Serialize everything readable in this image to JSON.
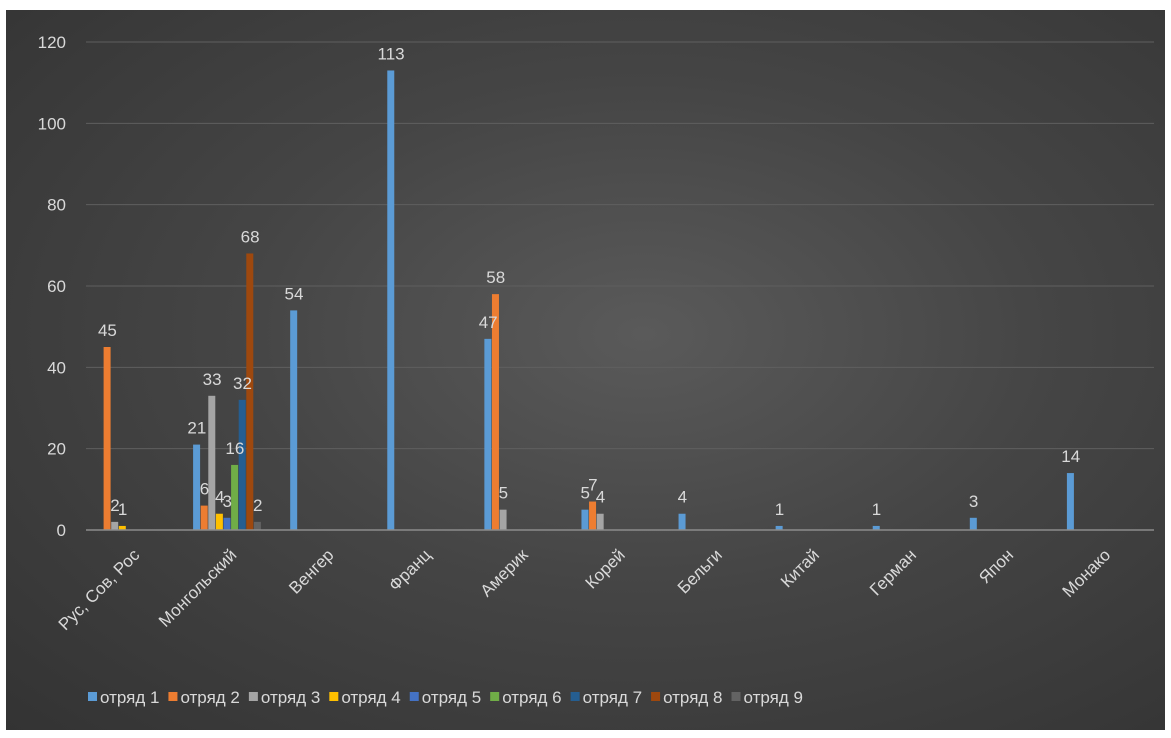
{
  "chart_data": {
    "type": "bar",
    "title": "",
    "xlabel": "",
    "ylabel": "",
    "ylim": [
      0,
      120
    ],
    "yticks": [
      0,
      20,
      40,
      60,
      80,
      100,
      120
    ],
    "grid": true,
    "legend_position": "bottom",
    "categories": [
      "Рус, Сов, Рос",
      "Монгольский",
      "Венгер",
      "Франц",
      "Америк",
      "Корей",
      "Бельги",
      "Китай",
      "Герман",
      "Япон",
      "Монако"
    ],
    "series": [
      {
        "name": "отряд 1",
        "color": "#5b9bd5",
        "values": [
          0,
          21,
          54,
          113,
          47,
          5,
          4,
          1,
          1,
          3,
          14
        ]
      },
      {
        "name": "отряд 2",
        "color": "#ed7d31",
        "values": [
          45,
          6,
          0,
          0,
          58,
          7,
          0,
          0,
          0,
          0,
          0
        ]
      },
      {
        "name": "отряд 3",
        "color": "#a5a5a5",
        "values": [
          2,
          33,
          0,
          0,
          5,
          4,
          0,
          0,
          0,
          0,
          0
        ]
      },
      {
        "name": "отряд 4",
        "color": "#ffc000",
        "values": [
          1,
          4,
          0,
          0,
          0,
          0,
          0,
          0,
          0,
          0,
          0
        ]
      },
      {
        "name": "отряд 5",
        "color": "#4472c4",
        "values": [
          0,
          3,
          0,
          0,
          0,
          0,
          0,
          0,
          0,
          0,
          0
        ]
      },
      {
        "name": "отряд 6",
        "color": "#70ad47",
        "values": [
          0,
          16,
          0,
          0,
          0,
          0,
          0,
          0,
          0,
          0,
          0
        ]
      },
      {
        "name": "отряд 7",
        "color": "#255e91",
        "values": [
          0,
          32,
          0,
          0,
          0,
          0,
          0,
          0,
          0,
          0,
          0
        ]
      },
      {
        "name": "отряд 8",
        "color": "#9e480e",
        "values": [
          0,
          68,
          0,
          0,
          0,
          0,
          0,
          0,
          0,
          0,
          0
        ]
      },
      {
        "name": "отряд 9",
        "color": "#636363",
        "values": [
          0,
          2,
          0,
          0,
          0,
          0,
          0,
          0,
          0,
          0,
          0
        ]
      }
    ]
  },
  "colors": {
    "background": "#404040",
    "gridline": "#5f5f5f",
    "axis": "#8c8c8c",
    "text": "#d9d9d9"
  }
}
